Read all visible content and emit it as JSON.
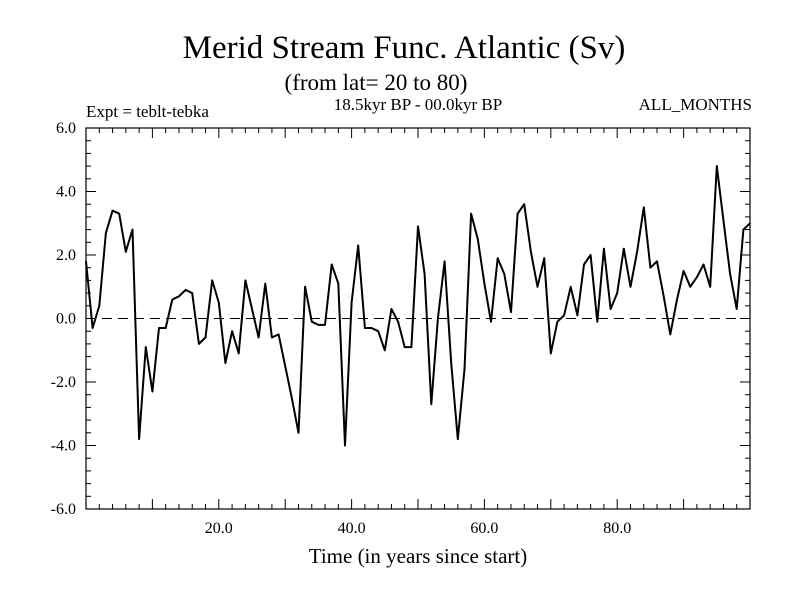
{
  "chart_data": {
    "type": "line",
    "title": "Merid Stream Func. Atlantic (Sv)",
    "subtitle": "(from lat= 20 to 80)",
    "period": "18.5kyr BP - 00.0kyr BP",
    "experiment": "Expt = teblt-tebka",
    "season": "ALL_MONTHS",
    "xlabel": "Time (in years since start)",
    "ylabel": "",
    "xlim": [
      0,
      100
    ],
    "ylim": [
      -6,
      6
    ],
    "xticks": [
      20,
      40,
      60,
      80
    ],
    "xtick_labels": [
      "20.0",
      "40.0",
      "60.0",
      "80.0"
    ],
    "yticks": [
      -6,
      -4,
      -2,
      0,
      2,
      4,
      6
    ],
    "ytick_labels": [
      "-6.0",
      "-4.0",
      "-2.0",
      "0.0",
      "2.0",
      "4.0",
      "6.0"
    ],
    "zero_line": true,
    "series": [
      {
        "name": "Expt = teblt-tebka",
        "x": [
          0,
          1,
          2,
          3,
          4,
          5,
          6,
          7,
          8,
          9,
          10,
          11,
          12,
          13,
          14,
          15,
          16,
          17,
          18,
          19,
          20,
          21,
          22,
          23,
          24,
          25,
          26,
          27,
          28,
          29,
          30,
          31,
          32,
          33,
          34,
          35,
          36,
          37,
          38,
          39,
          40,
          41,
          42,
          43,
          44,
          45,
          46,
          47,
          48,
          49,
          50,
          51,
          52,
          53,
          54,
          55,
          56,
          57,
          58,
          59,
          60,
          61,
          62,
          63,
          64,
          65,
          66,
          67,
          68,
          69,
          70,
          71,
          72,
          73,
          74,
          75,
          76,
          77,
          78,
          79,
          80,
          81,
          82,
          83,
          84,
          85,
          86,
          87,
          88,
          89,
          90,
          91,
          92,
          93,
          94,
          95,
          96,
          97,
          98,
          99,
          100
        ],
        "values": [
          1.8,
          -0.3,
          0.4,
          2.7,
          3.4,
          3.3,
          2.1,
          2.8,
          -3.8,
          -0.9,
          -2.3,
          -0.3,
          -0.3,
          0.6,
          0.7,
          0.9,
          0.8,
          -0.8,
          -0.6,
          1.2,
          0.5,
          -1.4,
          -0.4,
          -1.1,
          1.2,
          0.3,
          -0.6,
          1.1,
          -0.6,
          -0.5,
          -1.5,
          -2.5,
          -3.6,
          1.0,
          -0.1,
          -0.2,
          -0.2,
          1.7,
          1.1,
          -4.0,
          0.5,
          2.3,
          -0.3,
          -0.3,
          -0.4,
          -1.0,
          0.3,
          -0.1,
          -0.9,
          -0.9,
          2.9,
          1.4,
          -2.7,
          0.0,
          1.8,
          -1.4,
          -3.8,
          -1.6,
          3.3,
          2.5,
          1.1,
          -0.1,
          1.9,
          1.4,
          0.2,
          3.3,
          3.6,
          2.1,
          1.0,
          1.9,
          -1.1,
          -0.1,
          0.1,
          1.0,
          0.1,
          1.7,
          2.0,
          -0.1,
          2.2,
          0.3,
          0.8,
          2.2,
          1.0,
          2.1,
          3.5,
          1.6,
          1.8,
          0.7,
          -0.5,
          0.6,
          1.5,
          1.0,
          1.3,
          1.7,
          1.0,
          4.8,
          3.1,
          1.4,
          0.3,
          2.8,
          3.0
        ]
      }
    ]
  }
}
